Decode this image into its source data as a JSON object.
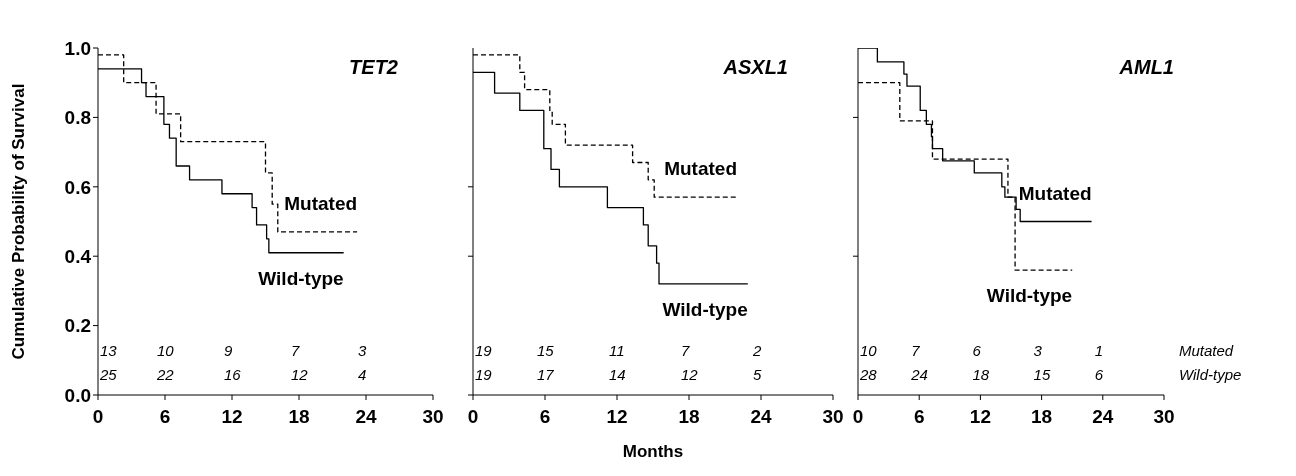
{
  "chart_data": [
    {
      "type": "step",
      "title": "TET2",
      "ylabel": "Cumulative Probability of Survival",
      "xlim": [
        0,
        30
      ],
      "xticks": [
        0,
        6,
        12,
        18,
        24,
        30
      ],
      "ylim": [
        0,
        1
      ],
      "yticks": [
        {
          "value": 0,
          "label": "0.0"
        },
        {
          "value": 0.2,
          "label": "0.2"
        },
        {
          "value": 0.4,
          "label": "0.4"
        },
        {
          "value": 0.6,
          "label": "0.6"
        },
        {
          "value": 0.8,
          "label": "0.8"
        },
        {
          "value": 1,
          "label": "1.0"
        }
      ],
      "series": [
        {
          "name": "Mutated",
          "color": "#000000",
          "line_style": "dashed",
          "x": [
            0,
            2.3,
            5.2,
            7.4,
            15.0,
            15.6,
            16.1,
            23.2
          ],
          "values": [
            0.98,
            0.9,
            0.81,
            0.73,
            0.64,
            0.55,
            0.47,
            0.47
          ]
        },
        {
          "name": "Wild-type",
          "color": "#000000",
          "line_style": "solid",
          "x": [
            0,
            3.9,
            4.3,
            5.9,
            6.4,
            7.0,
            8.2,
            11.1,
            13.8,
            14.2,
            15.1,
            15.3,
            22.0
          ],
          "values": [
            0.94,
            0.9,
            0.86,
            0.78,
            0.74,
            0.66,
            0.62,
            0.58,
            0.54,
            0.49,
            0.45,
            0.41,
            0.41
          ]
        }
      ],
      "annotations": [
        "13",
        "10",
        "9",
        "7",
        "3",
        "25",
        "22",
        "16",
        "12",
        "4"
      ]
    },
    {
      "type": "step",
      "title": "ASXL1",
      "xlabel": "Months",
      "xlim": [
        0,
        30
      ],
      "xticks": [
        0,
        6,
        12,
        18,
        24,
        30
      ],
      "ylim": [
        0,
        1
      ],
      "yticks": [
        {
          "value": 0,
          "label": null
        },
        {
          "value": 0.4,
          "label": null
        },
        {
          "value": 0.6,
          "label": null
        }
      ],
      "tick_labels": "x",
      "series": [
        {
          "name": "Mutated",
          "color": "#000000",
          "line_style": "dashed",
          "x": [
            0,
            3.9,
            4.3,
            6.4,
            6.6,
            7.7,
            13.3,
            14.6,
            15.1,
            22.0
          ],
          "values": [
            0.98,
            0.93,
            0.88,
            0.82,
            0.78,
            0.72,
            0.67,
            0.62,
            0.57,
            0.57
          ]
        },
        {
          "name": "Wild-type",
          "color": "#000000",
          "line_style": "solid",
          "x": [
            0,
            1.8,
            3.9,
            5.9,
            6.5,
            7.2,
            11.2,
            14.2,
            14.6,
            15.3,
            15.5,
            22.9
          ],
          "values": [
            0.93,
            0.87,
            0.82,
            0.71,
            0.65,
            0.6,
            0.54,
            0.49,
            0.43,
            0.38,
            0.32,
            0.32
          ]
        }
      ],
      "annotations": [
        "19",
        "15",
        "11",
        "7",
        "2",
        "19",
        "17",
        "14",
        "12",
        "5"
      ]
    },
    {
      "type": "step",
      "title": "AML1",
      "xlim": [
        0,
        30
      ],
      "xticks": [
        0,
        6,
        12,
        18,
        24,
        30
      ],
      "ylim": [
        0,
        1
      ],
      "yticks": [
        {
          "value": 0.4,
          "label": null
        },
        {
          "value": 0.8,
          "label": null
        }
      ],
      "tick_labels": "x",
      "series": [
        {
          "name": "Mutated",
          "color": "#000000",
          "line_style": "solid",
          "x": [
            0,
            1.9,
            4.5,
            4.8,
            6.1,
            6.7,
            7.2,
            7.3,
            8.3,
            11.4,
            14.1,
            14.4,
            15.5,
            15.9,
            22.9
          ],
          "values": [
            1.0,
            0.96,
            0.925,
            0.89,
            0.82,
            0.78,
            0.745,
            0.71,
            0.675,
            0.64,
            0.6,
            0.57,
            0.535,
            0.5,
            0.5
          ]
        },
        {
          "name": "Wild-type",
          "color": "#000000",
          "line_style": "dashed",
          "x": [
            0,
            4.1,
            7.3,
            14.7,
            15.4,
            21.0
          ],
          "values": [
            0.9,
            0.79,
            0.68,
            0.57,
            0.36,
            0.36
          ]
        }
      ],
      "annotations": [
        "10",
        "7",
        "6",
        "3",
        "1",
        "28",
        "24",
        "18",
        "15",
        "6",
        "Mutated",
        "Wild-type"
      ]
    }
  ]
}
